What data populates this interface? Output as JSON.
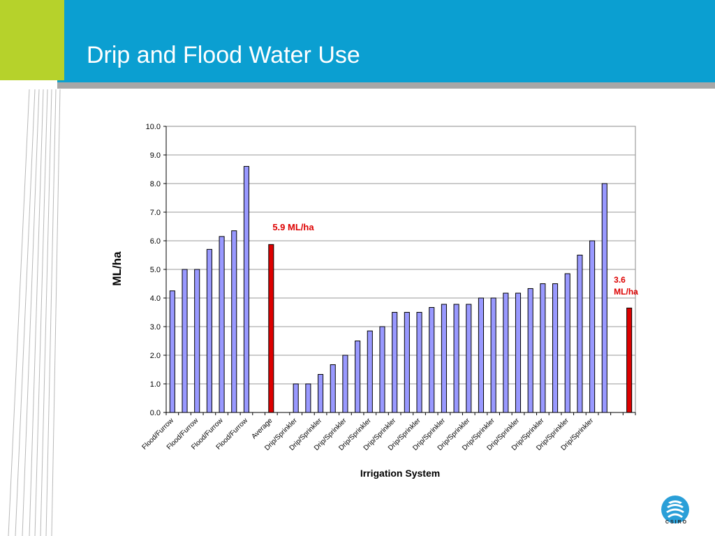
{
  "slide": {
    "title": "Drip and Flood Water Use",
    "logo_text": "CSIRO",
    "colors": {
      "header": "#0b9fd1",
      "accent_green": "#b6d22b",
      "bar": "#9999ff",
      "highlight": "#dd0000"
    }
  },
  "chart_data": {
    "type": "bar",
    "title": "",
    "xlabel": "Irrigation System",
    "ylabel": "ML/ha",
    "ylim": [
      0,
      10
    ],
    "yticks": [
      "0.0",
      "1.0",
      "2.0",
      "3.0",
      "4.0",
      "5.0",
      "6.0",
      "7.0",
      "8.0",
      "9.0",
      "10.0"
    ],
    "grid": true,
    "legend": "none",
    "categories": [
      "Flood/Furrow",
      "",
      "Flood/Furrow",
      "",
      "Flood/Furrow",
      "",
      "Flood/Furrow",
      "",
      "Average",
      "",
      "Drip/Sprinkler",
      "",
      "Drip/Sprinkler",
      "",
      "Drip/Sprinkler",
      "",
      "Drip/Sprinkler",
      "",
      "Drip/Sprinkler",
      "",
      "Drip/Sprinkler",
      "",
      "Drip/Sprinkler",
      "",
      "Drip/Sprinkler",
      "",
      "Drip/Sprinkler",
      "",
      "Drip/Sprinkler",
      "",
      "Drip/Sprinkler",
      "",
      "Drip/Sprinkler",
      "",
      "Drip/Sprinkler",
      "",
      "",
      ""
    ],
    "values": [
      4.25,
      5.0,
      5.0,
      5.7,
      6.15,
      6.35,
      8.6,
      null,
      5.87,
      null,
      1.0,
      1.0,
      1.33,
      1.67,
      2.0,
      2.5,
      2.85,
      3.0,
      3.5,
      3.5,
      3.5,
      3.67,
      3.78,
      3.78,
      3.78,
      4.0,
      4.0,
      4.17,
      4.17,
      4.33,
      4.5,
      4.5,
      4.85,
      5.5,
      6.0,
      8.0,
      null,
      3.65
    ],
    "highlight_indices": [
      8,
      37
    ],
    "annotations": [
      {
        "text": "5.9 ML/ha",
        "index": 8
      },
      {
        "lines": [
          "3.6",
          "ML/ha"
        ],
        "index": 37
      }
    ]
  }
}
